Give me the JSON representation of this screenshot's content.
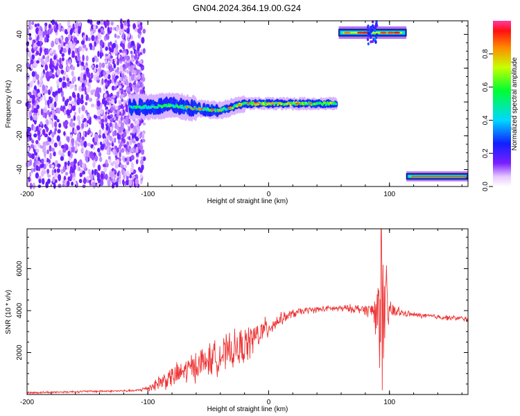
{
  "title": "GN04.2024.364.19.00.G24",
  "chart_data": [
    {
      "type": "heatmap",
      "xlabel": "Height of straight line (km)",
      "ylabel": "Frequency (Hz)",
      "xlim": [
        -200,
        165
      ],
      "ylim": [
        -50,
        48
      ],
      "x_ticks": [
        -200,
        -100,
        0,
        100
      ],
      "y_ticks": [
        -40,
        -20,
        0,
        20,
        40
      ],
      "grid": false,
      "colorbar": {
        "label": "Normalized spectral amplitude",
        "range": [
          0,
          1
        ],
        "ticks": [
          0.0,
          0.2,
          0.4,
          0.6,
          0.8
        ],
        "colormap": "rainbow (white-violet-blue-cyan-green-yellow-red)"
      },
      "regions": [
        {
          "name": "noise",
          "x_range": [
            -200,
            -103
          ],
          "freq_range": [
            -50,
            48
          ],
          "amplitude": "low, scattered"
        },
        {
          "name": "main trace",
          "x": [
            -115,
            -100,
            -80,
            -60,
            -40,
            -20,
            0,
            20,
            40,
            56
          ],
          "freq": [
            -3,
            -3,
            -2,
            -4,
            -5,
            -1,
            -1,
            -1,
            -1,
            -1
          ],
          "peak_amplitude": 0.85
        },
        {
          "name": "upper band",
          "x_range": [
            58,
            114
          ],
          "freq": 41,
          "peak_amplitude": 0.95
        },
        {
          "name": "lower band",
          "x_range": [
            114,
            165
          ],
          "freq": -44,
          "peak_amplitude": 0.9
        }
      ]
    },
    {
      "type": "line",
      "xlabel": "Height of straight line (km)",
      "ylabel": "SNR (10 * v/v)",
      "xlim": [
        -200,
        165
      ],
      "ylim": [
        0,
        7900
      ],
      "x_ticks": [
        -200,
        -100,
        0,
        100
      ],
      "y_ticks": [
        2000,
        4000,
        6000
      ],
      "grid": false,
      "color": "#ee3333",
      "envelope": {
        "x": [
          -200,
          -150,
          -110,
          -100,
          -90,
          -75,
          -60,
          -40,
          -20,
          -10,
          0,
          10,
          20,
          30,
          40,
          50,
          60,
          70,
          80,
          85,
          90,
          93,
          95,
          97,
          100,
          110,
          120,
          140,
          165
        ],
        "y_center": [
          80,
          150,
          180,
          300,
          600,
          950,
          1400,
          1850,
          2300,
          2800,
          3200,
          3600,
          3850,
          4000,
          4050,
          4100,
          4100,
          4100,
          4050,
          4000,
          4000,
          3900,
          3800,
          3900,
          4000,
          3900,
          3800,
          3700,
          3600
        ],
        "y_spread": [
          60,
          60,
          60,
          200,
          500,
          700,
          900,
          1000,
          1100,
          900,
          600,
          350,
          250,
          200,
          180,
          180,
          200,
          250,
          300,
          500,
          1800,
          3800,
          3600,
          2800,
          700,
          200,
          150,
          150,
          150
        ]
      },
      "peak": {
        "x": 93,
        "y": 7900
      },
      "dip": {
        "x": 94,
        "y": 200
      }
    }
  ]
}
